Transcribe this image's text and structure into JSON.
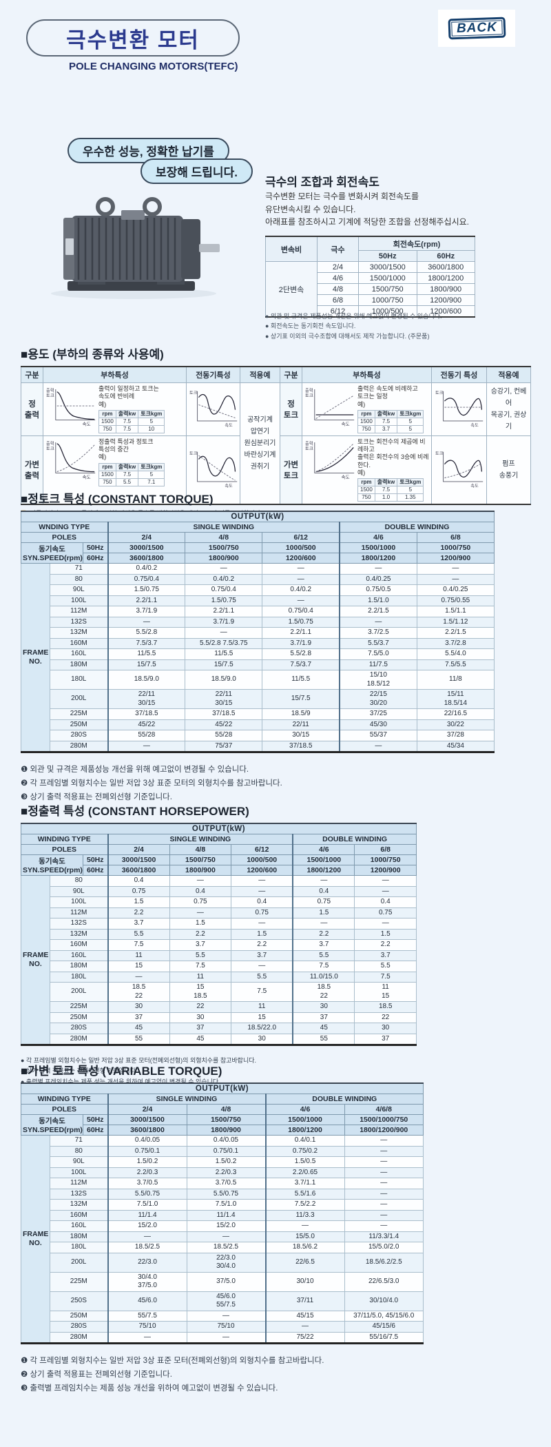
{
  "header": {
    "title": "극수변환 모터",
    "subtitle": "POLE CHANGING MOTORS(TEFC)",
    "back_label": "BACK"
  },
  "intro": {
    "bubble1": "우수한 성능, 정확한 납기를",
    "bubble2": "보장해 드립니다.",
    "heading": "극수의 조합과 회전속도",
    "desc_lines": [
      "극수변환 모터는 극수를 변화시켜 회전속도를",
      "유단변속시킬 수 있습니다.",
      "아래표를 참조하시고 기계에 적당한 조합을 선정해주십시요."
    ],
    "speed_table": {
      "col_ratio": "변속비",
      "col_poles": "극수",
      "col_speed": "회전속도(rpm)",
      "col_50": "50Hz",
      "col_60": "60Hz",
      "group": "2단변속",
      "rows": [
        [
          "2/4",
          "3000/1500",
          "3600/1800"
        ],
        [
          "4/6",
          "1500/1000",
          "1800/1200"
        ],
        [
          "4/8",
          "1500/750",
          "1800/900"
        ],
        [
          "6/8",
          "1000/750",
          "1200/900"
        ],
        [
          "6/12",
          "1000/500",
          "1200/600"
        ]
      ]
    },
    "notes": [
      "● 외관 및 규격은 제품성능 개선을 위해 예고없이 변경될 수 있습니다.",
      "● 회전속도는 동기회전 속도입니다.",
      "● 상기표 이외의 극수조합에 대해서도 제작 가능합니다. (주문품)"
    ]
  },
  "usage": {
    "section_title": "■용도 (부하의 종류와 사용예)",
    "headers": [
      "구분",
      "부하특성",
      "전동기특성",
      "적용예",
      "구분",
      "부하특성",
      "전동기 특성",
      "적용예"
    ],
    "ex_label": "예)",
    "ex_headers": [
      "rpm",
      "출력kw",
      "토크kgm"
    ],
    "axis_y_out": "출력\n토크",
    "axis_y_trq": "토크",
    "axis_x": "속도",
    "q1": {
      "label": "정\n출력",
      "desc": "출력이 일정하고 토크는\n속도에 반비례",
      "ex": [
        [
          "1500",
          "7.5",
          "5"
        ],
        [
          "750",
          "7.5",
          "10"
        ]
      ]
    },
    "q2": {
      "label": "가변\n출력",
      "desc": "정출력 특성과 정토크\n특성의 중간",
      "ex": [
        [
          "1500",
          "7.5",
          "5"
        ],
        [
          "750",
          "5.5",
          "7.1"
        ]
      ]
    },
    "q3": {
      "label": "정\n토크",
      "desc": "출력은 속도에 비례하고\n토크는 일정",
      "ex": [
        [
          "1500",
          "7.5",
          "5"
        ],
        [
          "750",
          "3.7",
          "5"
        ]
      ],
      "app": "승강기, 컨베어\n목공기, 권상기"
    },
    "q4": {
      "label": "가변\n토크",
      "desc": "토크는 회전수의 제곱에 비례하고\n출력은 회전수의 3승에 비례한다.",
      "ex": [
        [
          "1500",
          "7.5",
          "5"
        ],
        [
          "750",
          "1.0",
          "1.35"
        ]
      ],
      "app": "펌프\n송풍기"
    },
    "app_left": "공작기계\n압연기\n원심분리기\n바란싱기계\n권취기",
    "note_prefix": "주)",
    "note_text": " 전동기의 속도·토크 특성에 표시한 파선은 극수를 변환시켰을 때의 토크 추이를 표시합니다."
  },
  "table_labels": {
    "output": "OUTPUT(kW)",
    "poles": "POLES",
    "single": "SINGLE WINDING",
    "double": "DOUBLE WINDING",
    "syn_ko": "동기속도",
    "syn_en": "SYN.SPEED(rpm)",
    "hz50": "50Hz",
    "hz60": "60Hz",
    "frame": "FRAME\nNO."
  },
  "constant_torque": {
    "section_title": "■정토크 특성 (CONSTANT TORQUE)",
    "winding_label": "WNDING TYPE",
    "single_cols": [
      "2/4",
      "4/8",
      "6/12"
    ],
    "double_cols": [
      "4/6",
      "6/8"
    ],
    "speeds_50": [
      "3000/1500",
      "1500/750",
      "1000/500",
      "1500/1000",
      "1000/750"
    ],
    "speeds_60": [
      "3600/1800",
      "1800/900",
      "1200/600",
      "1800/1200",
      "1200/900"
    ],
    "rows": [
      [
        "71",
        "0.4/0.2",
        "—",
        "—",
        "—",
        "—"
      ],
      [
        "80",
        "0.75/0.4",
        "0.4/0.2",
        "—",
        "0.4/0.25",
        "—"
      ],
      [
        "90L",
        "1.5/0.75",
        "0.75/0.4",
        "0.4/0.2",
        "0.75/0.5",
        "0.4/0.25"
      ],
      [
        "100L",
        "2.2/1.1",
        "1.5/0.75",
        "—",
        "1.5/1.0",
        "0.75/0.55"
      ],
      [
        "112M",
        "3.7/1.9",
        "2.2/1.1",
        "0.75/0.4",
        "2.2/1.5",
        "1.5/1.1"
      ],
      [
        "132S",
        "—",
        "3.7/1.9",
        "1.5/0.75",
        "—",
        "1.5/1.12"
      ],
      [
        "132M",
        "5.5/2.8",
        "—",
        "2.2/1.1",
        "3.7/2.5",
        "2.2/1.5"
      ],
      [
        "160M",
        "7.5/3.7",
        "5.5/2.8  7.5/3.75",
        "3.7/1.9",
        "5.5/3.7",
        "3.7/2.8"
      ],
      [
        "160L",
        "11/5.5",
        "11/5.5",
        "5.5/2.8",
        "7.5/5.0",
        "5.5/4.0"
      ],
      [
        "180M",
        "15/7.5",
        "15/7.5",
        "7.5/3.7",
        "11/7.5",
        "7.5/5.5"
      ],
      [
        "180L",
        "18.5/9.0",
        "18.5/9.0",
        "11/5.5",
        "15/10\n18.5/12",
        "11/8"
      ],
      [
        "200L",
        "22/11\n30/15",
        "22/11\n30/15",
        "15/7.5",
        "22/15\n30/20",
        "15/11\n18.5/14"
      ],
      [
        "225M",
        "37/18.5",
        "37/18.5",
        "18.5/9",
        "37/25",
        "22/16.5"
      ],
      [
        "250M",
        "45/22",
        "45/22",
        "22/11",
        "45/30",
        "30/22"
      ],
      [
        "280S",
        "55/28",
        "55/28",
        "30/15",
        "55/37",
        "37/28"
      ],
      [
        "280M",
        "—",
        "75/37",
        "37/18.5",
        "—",
        "45/34"
      ]
    ],
    "notes": [
      "❶ 외관 및 규격은 제품성능 개선을 위해 예고없이 변경될 수 있습니다.",
      "❷ 각 프레임별 외형치수는 일반 저압 3상 표준 모터의 외형치수를 참고바랍니다.",
      "❸ 상기 출력 적용표는 전폐외선형 기준입니다."
    ]
  },
  "constant_horsepower": {
    "section_title": "■정출력 특성 (CONSTANT HORSEPOWER)",
    "winding_label": "WINDING TYPE",
    "single_cols": [
      "2/4",
      "4/8",
      "6/12"
    ],
    "double_cols": [
      "4/6",
      "6/8"
    ],
    "speeds_50": [
      "3000/1500",
      "1500/750",
      "1000/500",
      "1500/1000",
      "1000/750"
    ],
    "speeds_60": [
      "3600/1800",
      "1800/900",
      "1200/600",
      "1800/1200",
      "1200/900"
    ],
    "rows": [
      [
        "80",
        "0.4",
        "—",
        "—",
        "—",
        "—"
      ],
      [
        "90L",
        "0.75",
        "0.4",
        "—",
        "0.4",
        "—"
      ],
      [
        "100L",
        "1.5",
        "0.75",
        "0.4",
        "0.75",
        "0.4"
      ],
      [
        "112M",
        "2.2",
        "—",
        "0.75",
        "1.5",
        "0.75"
      ],
      [
        "132S",
        "3.7",
        "1.5",
        "—",
        "—",
        "—"
      ],
      [
        "132M",
        "5.5",
        "2.2",
        "1.5",
        "2.2",
        "1.5"
      ],
      [
        "160M",
        "7.5",
        "3.7",
        "2.2",
        "3.7",
        "2.2"
      ],
      [
        "160L",
        "11",
        "5.5",
        "3.7",
        "5.5",
        "3.7"
      ],
      [
        "180M",
        "15",
        "7.5",
        "—",
        "7.5",
        "5.5"
      ],
      [
        "180L",
        "—",
        "11",
        "5.5",
        "11.0/15.0",
        "7.5"
      ],
      [
        "200L",
        "18.5\n22",
        "15\n18.5",
        "7.5",
        "18.5\n22",
        "11\n15"
      ],
      [
        "225M",
        "30",
        "22",
        "11",
        "30",
        "18.5"
      ],
      [
        "250M",
        "37",
        "30",
        "15",
        "37",
        "22"
      ],
      [
        "280S",
        "45",
        "37",
        "18.5/22.0",
        "45",
        "30"
      ],
      [
        "280M",
        "55",
        "45",
        "30",
        "55",
        "37"
      ]
    ],
    "notes": [
      "● 각 프레임별 외형치수는 일반 저압 3상 표준 모터(전폐외선형)의 외형치수를 참고바랍니다.",
      "● 상기 출력 적용표는 전폐외선형 기준입니다.",
      "● 출력별 프레임치수는 제품 성능 개선을 위하여 예고없이 변경될 수 있습니다."
    ]
  },
  "variable_torque": {
    "section_title": "■가변 토크 특성 (VARIABLE TORQUE)",
    "winding_label": "WINDING TYPE",
    "single_cols": [
      "2/4",
      "4/8"
    ],
    "double_cols": [
      "4/6",
      "4/6/8"
    ],
    "speeds_50": [
      "3000/1500",
      "1500/750",
      "1500/1000",
      "1500/1000/750"
    ],
    "speeds_60": [
      "3600/1800",
      "1800/900",
      "1800/1200",
      "1800/1200/900"
    ],
    "rows": [
      [
        "71",
        "0.4/0.05",
        "0.4/0.05",
        "0.4/0.1",
        "—"
      ],
      [
        "80",
        "0.75/0.1",
        "0.75/0.1",
        "0.75/0.2",
        "—"
      ],
      [
        "90L",
        "1.5/0.2",
        "1.5/0.2",
        "1.5/0.5",
        "—"
      ],
      [
        "100L",
        "2.2/0.3",
        "2.2/0.3",
        "2.2/0.65",
        "—"
      ],
      [
        "112M",
        "3.7/0.5",
        "3.7/0.5",
        "3.7/1.1",
        "—"
      ],
      [
        "132S",
        "5.5/0.75",
        "5.5/0.75",
        "5.5/1.6",
        "—"
      ],
      [
        "132M",
        "7.5/1.0",
        "7.5/1.0",
        "7.5/2.2",
        "—"
      ],
      [
        "160M",
        "11/1.4",
        "11/1.4",
        "11/3.3",
        "—"
      ],
      [
        "160L",
        "15/2.0",
        "15/2.0",
        "—",
        "—"
      ],
      [
        "180M",
        "—",
        "—",
        "15/5.0",
        "11/3.3/1.4"
      ],
      [
        "180L",
        "18.5/2.5",
        "18.5/2.5",
        "18.5/6.2",
        "15/5.0/2.0"
      ],
      [
        "200L",
        "22/3.0",
        "22/3.0\n30/4.0",
        "22/6.5",
        "18.5/6.2/2.5"
      ],
      [
        "225M",
        "30/4.0\n37/5.0",
        "37/5.0",
        "30/10",
        "22/6.5/3.0"
      ],
      [
        "250S",
        "45/6.0",
        "45/6.0\n55/7.5",
        "37/11",
        "30/10/4.0"
      ],
      [
        "250M",
        "55/7.5",
        "—",
        "45/15",
        "37/11/5.0, 45/15/6.0"
      ],
      [
        "280S",
        "75/10",
        "75/10",
        "—",
        "45/15/6"
      ],
      [
        "280M",
        "—",
        "—",
        "75/22",
        "55/16/7.5"
      ]
    ],
    "notes": [
      "❶ 각 프레임별 외형치수는 일반 저압 3상 표준 모터(전폐외선형)의 외형치수를 참고바랍니다.",
      "❷ 상기 출력 적용표는 전폐외선형 기준입니다.",
      "❸ 출력별 프레임치수는 제품 성능 개선을 위하여 예고없이 변경될 수 있습니다."
    ]
  }
}
